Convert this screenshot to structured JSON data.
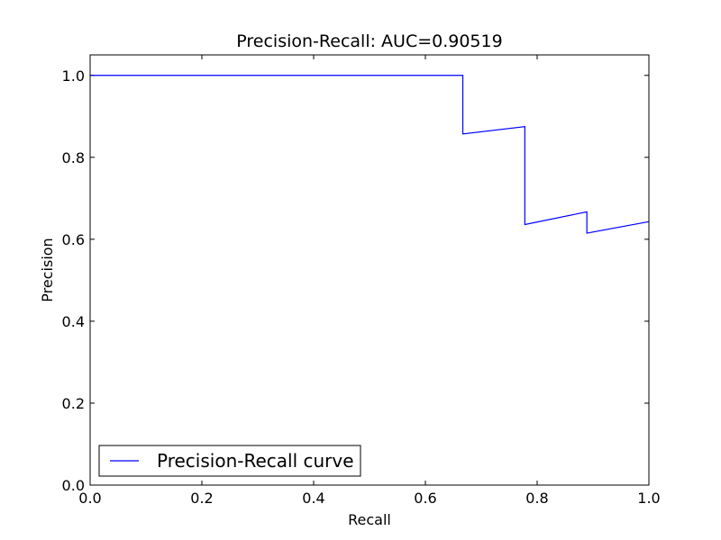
{
  "chart_data": {
    "type": "line",
    "title": "Precision-Recall: AUC=0.90519",
    "xlabel": "Recall",
    "ylabel": "Precision",
    "xlim": [
      0.0,
      1.0
    ],
    "ylim": [
      0.0,
      1.05
    ],
    "x_ticks": [
      0.0,
      0.2,
      0.4,
      0.6,
      0.8,
      1.0
    ],
    "x_tick_labels": [
      "0.0",
      "0.2",
      "0.4",
      "0.6",
      "0.8",
      "1.0"
    ],
    "y_ticks": [
      0.0,
      0.2,
      0.4,
      0.6,
      0.8,
      1.0
    ],
    "y_tick_labels": [
      "0.0",
      "0.2",
      "0.4",
      "0.6",
      "0.8",
      "1.0"
    ],
    "grid": false,
    "legend_position": "lower left",
    "series": [
      {
        "name": "Precision-Recall curve",
        "color": "#0000ff",
        "x": [
          0.0,
          0.667,
          0.667,
          0.778,
          0.778,
          0.889,
          0.889,
          1.0
        ],
        "y": [
          1.0,
          1.0,
          0.857,
          0.875,
          0.636,
          0.667,
          0.615,
          0.643
        ]
      }
    ]
  }
}
